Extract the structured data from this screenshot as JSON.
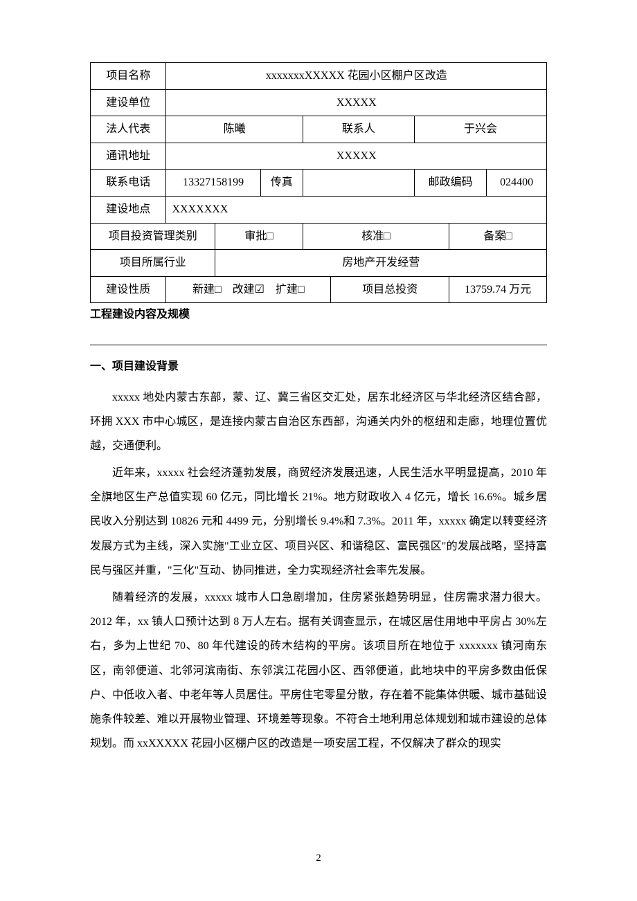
{
  "table": {
    "project_name_label": "项目名称",
    "project_name_value": "xxxxxxxXXXXX 花园小区棚户区改造",
    "builder_label": "建设单位",
    "builder_value": "XXXXX",
    "legal_rep_label": "法人代表",
    "legal_rep_value": "陈曦",
    "contact_label": "联系人",
    "contact_value": "于兴会",
    "address_label": "通讯地址",
    "address_value": "XXXXX",
    "phone_label": "联系电话",
    "phone_value": "13327158199",
    "fax_label": "传真",
    "fax_value": "",
    "postcode_label": "邮政编码",
    "postcode_value": "024400",
    "location_label": "建设地点",
    "location_value": "XXXXXXX",
    "invest_mgmt_label": "项目投资管理类别",
    "approval_label": "审批□",
    "verify_label": "核准□",
    "filing_label": "备案□",
    "industry_label": "项目所属行业",
    "industry_value": "房地产开发经营",
    "build_nature_label": "建设性质",
    "build_nature_value": "新建□ 改建☑ 扩建□",
    "total_invest_label": "项目总投资",
    "total_invest_value": "13759.74 万元"
  },
  "section_title": "工程建设内容及规模",
  "heading": "一、项目建设背景",
  "paragraphs": {
    "p1": "xxxxx 地处内蒙古东部，蒙、辽、冀三省区交汇处，居东北经济区与华北经济区结合部，环拥 XXX 市中心城区，是连接内蒙古自治区东西部，沟通关内外的枢纽和走廊，地理位置优越，交通便利。",
    "p2": "近年来，xxxxx 社会经济蓬勃发展，商贸经济发展迅速，人民生活水平明显提高，2010 年全旗地区生产总值实现 60 亿元，同比增长 21%。地方财政收入 4 亿元，增长 16.6%。城乡居民收入分别达到 10826 元和 4499 元，分别增长 9.4%和 7.3%。2011 年，xxxxx 确定以转变经济发展方式为主线，深入实施\"工业立区、项目兴区、和谐稳区、富民强区\"的发展战略，坚持富民与强区并重，\"三化\"互动、协同推进，全力实现经济社会率先发展。",
    "p3": "随着经济的发展，xxxxx 城市人口急剧增加，住房紧张趋势明显，住房需求潜力很大。2012 年，xx 镇人口预计达到 8 万人左右。据有关调查显示，在城区居住用地中平房占 30%左右，多为上世纪 70、80 年代建设的砖木结构的平房。该项目所在地位于 xxxxxxx 镇河南东区，南邻便道、北邻河滨南街、东邻滨江花园小区、西邻便道，此地块中的平房多数由低保户、中低收入者、中老年等人员居住。平房住宅零星分散，存在着不能集体供暖、城市基础设施条件较差、难以开展物业管理、环境差等现象。不符合土地利用总体规划和城市建设的总体规划。而 xxXXXXX 花园小区棚户区的改造是一项安居工程，不仅解决了群众的现实"
  },
  "page_number": "2",
  "colors": {
    "background": "#ffffff",
    "text": "#000000",
    "border": "#000000"
  }
}
